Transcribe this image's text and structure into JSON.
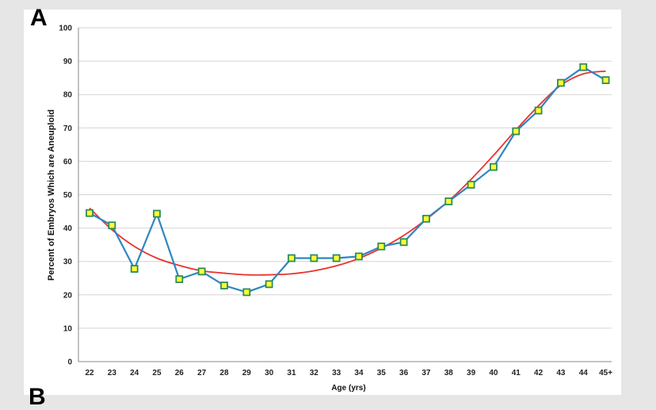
{
  "figure": {
    "panel_label": "A",
    "next_panel_label": "B"
  },
  "colors": {
    "series_line": "#2e86c1",
    "marker_fill": "#ffff33",
    "marker_stroke": "#2e8b57",
    "fit_line": "#e8322e",
    "gridline": "#d4d4d4",
    "axis": "#888888"
  },
  "chart_data": {
    "type": "line",
    "title": "",
    "xlabel": "Age (yrs)",
    "ylabel": "Percent of Embryos Which are Aneuploid",
    "categories": [
      "22",
      "23",
      "24",
      "25",
      "26",
      "27",
      "28",
      "29",
      "30",
      "31",
      "32",
      "33",
      "34",
      "35",
      "36",
      "37",
      "38",
      "39",
      "40",
      "41",
      "42",
      "43",
      "44",
      "45+"
    ],
    "series": [
      {
        "values": [
          44.5,
          40.8,
          27.8,
          44.3,
          24.7,
          27.0,
          22.8,
          20.8,
          23.2,
          31.0,
          31.0,
          31.0,
          31.5,
          34.5,
          35.8,
          42.8,
          48.0,
          53.0,
          58.3,
          69.0,
          75.2,
          83.5,
          88.2,
          84.3
        ],
        "marker": "square"
      },
      {
        "values": [
          46.0,
          39.5,
          34.5,
          31.0,
          28.8,
          27.2,
          26.5,
          26.0,
          26.0,
          26.3,
          27.2,
          28.7,
          30.9,
          34.0,
          37.8,
          42.6,
          48.1,
          54.6,
          61.8,
          69.4,
          76.6,
          82.8,
          86.2,
          87.0
        ],
        "style": "trendline"
      }
    ],
    "ylim": [
      0,
      100
    ],
    "yticks": [
      0,
      10,
      20,
      30,
      40,
      50,
      60,
      70,
      80,
      90,
      100
    ],
    "grid": true,
    "legend": "none"
  }
}
